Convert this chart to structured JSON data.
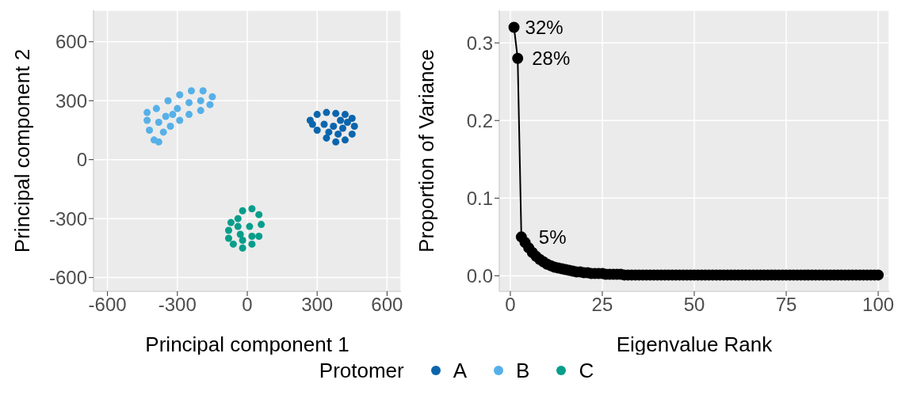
{
  "chart_data": [
    {
      "type": "scatter",
      "xlabel": "Principal component 1",
      "ylabel": "Principal component 2",
      "xlim": [
        -660,
        660
      ],
      "ylim": [
        -670,
        760
      ],
      "xticks": [
        -600,
        -300,
        0,
        300,
        600
      ],
      "yticks": [
        -600,
        -300,
        0,
        300,
        600
      ],
      "grid": true,
      "marker": "circle",
      "legend": "bottom",
      "legend_title": "Protomer",
      "series": [
        {
          "name": "A",
          "color": "#0b65ad",
          "x": [
            270,
            300,
            340,
            380,
            420,
            450,
            460,
            450,
            420,
            380,
            340,
            300,
            280,
            330,
            370,
            410,
            400,
            350,
            390,
            430
          ],
          "values": [
            200,
            230,
            240,
            235,
            230,
            210,
            170,
            130,
            100,
            90,
            110,
            150,
            180,
            180,
            170,
            160,
            200,
            140,
            130,
            190
          ]
        },
        {
          "name": "B",
          "color": "#56b0e8",
          "x": [
            -430,
            -420,
            -400,
            -380,
            -360,
            -330,
            -290,
            -250,
            -200,
            -160,
            -150,
            -190,
            -240,
            -290,
            -340,
            -390,
            -430,
            -350,
            -300,
            -250,
            -200,
            -380,
            -320
          ],
          "values": [
            200,
            150,
            100,
            90,
            140,
            170,
            200,
            230,
            250,
            280,
            320,
            350,
            350,
            330,
            300,
            260,
            240,
            220,
            260,
            290,
            300,
            190,
            230
          ]
        },
        {
          "name": "C",
          "color": "#079e8b",
          "x": [
            -80,
            -70,
            -40,
            -20,
            20,
            50,
            60,
            50,
            20,
            -20,
            -60,
            -80,
            -30,
            10,
            20,
            -40,
            -20
          ],
          "values": [
            -360,
            -320,
            -300,
            -260,
            -250,
            -280,
            -330,
            -390,
            -430,
            -450,
            -430,
            -400,
            -380,
            -340,
            -390,
            -340,
            -410
          ]
        }
      ]
    },
    {
      "type": "line",
      "xlabel": "Eigenvalue Rank",
      "ylabel": "Proportion of Variance",
      "xlim": [
        -3,
        103
      ],
      "ylim": [
        -0.02,
        0.342
      ],
      "xticks": [
        0,
        25,
        50,
        75,
        100
      ],
      "yticks": [
        {
          "value": 0,
          "label": "0.0"
        },
        0.1,
        0.2,
        0.3
      ],
      "grid": true,
      "marker": "circle",
      "line_style": "solid",
      "annotations": [
        {
          "text": "32%",
          "x": 1,
          "y": 0.32
        },
        {
          "text": "28%",
          "x": 2,
          "y": 0.28
        },
        {
          "text": "5%",
          "x": 3,
          "y": 0.05
        }
      ],
      "series": [
        {
          "color": "#000000",
          "x": [
            1,
            2,
            3,
            4,
            5,
            6,
            7,
            8,
            9,
            10,
            11,
            12,
            13,
            14,
            15,
            16,
            17,
            18,
            19,
            20,
            21,
            22,
            23,
            24,
            25,
            26,
            27,
            28,
            29,
            30,
            31,
            32,
            33,
            34,
            35,
            36,
            37,
            38,
            39,
            40,
            41,
            42,
            43,
            44,
            45,
            46,
            47,
            48,
            49,
            50,
            51,
            52,
            53,
            54,
            55,
            56,
            57,
            58,
            59,
            60,
            61,
            62,
            63,
            64,
            65,
            66,
            67,
            68,
            69,
            70,
            71,
            72,
            73,
            74,
            75,
            76,
            77,
            78,
            79,
            80,
            81,
            82,
            83,
            84,
            85,
            86,
            87,
            88,
            89,
            90,
            91,
            92,
            93,
            94,
            95,
            96,
            97,
            98,
            99,
            100
          ],
          "values": [
            0.32,
            0.28,
            0.05,
            0.043,
            0.036,
            0.03,
            0.025,
            0.021,
            0.018,
            0.015,
            0.013,
            0.011,
            0.01,
            0.009,
            0.008,
            0.007,
            0.006,
            0.005,
            0.005,
            0.004,
            0.004,
            0.003,
            0.003,
            0.003,
            0.003,
            0.002,
            0.002,
            0.002,
            0.002,
            0.002,
            0.001,
            0.001,
            0.001,
            0.001,
            0.001,
            0.001,
            0.001,
            0.001,
            0.001,
            0.001,
            0.001,
            0.001,
            0.001,
            0.001,
            0.001,
            0.001,
            0.001,
            0.001,
            0.001,
            0.001,
            0.001,
            0.001,
            0.001,
            0.001,
            0.001,
            0.001,
            0.001,
            0.001,
            0.001,
            0.001,
            0.001,
            0.001,
            0.001,
            0.001,
            0.001,
            0.001,
            0.001,
            0.001,
            0.001,
            0.001,
            0.001,
            0.001,
            0.001,
            0.001,
            0.001,
            0.001,
            0.001,
            0.001,
            0.001,
            0.001,
            0.001,
            0.001,
            0.001,
            0.001,
            0.001,
            0.001,
            0.001,
            0.001,
            0.001,
            0.001,
            0.001,
            0.001,
            0.001,
            0.001,
            0.001,
            0.001,
            0.001,
            0.001,
            0.001,
            0.001
          ]
        }
      ]
    }
  ]
}
